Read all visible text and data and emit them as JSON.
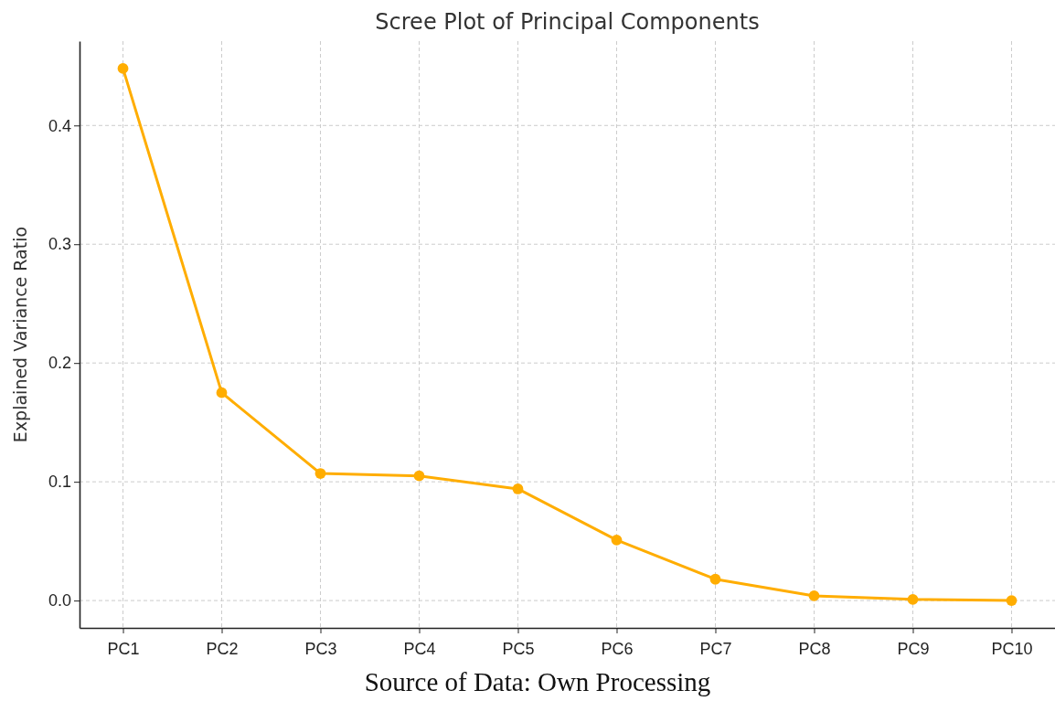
{
  "chart_data": {
    "type": "line",
    "title": "Scree Plot of Principal Components",
    "ylabel": "Explained Variance Ratio",
    "categories": [
      "PC1",
      "PC2",
      "PC3",
      "PC4",
      "PC5",
      "PC6",
      "PC7",
      "PC8",
      "PC9",
      "PC10"
    ],
    "series": [
      {
        "color": "#ffad00",
        "values": [
          0.448,
          0.175,
          0.107,
          0.105,
          0.094,
          0.051,
          0.018,
          0.004,
          0.001,
          0.0
        ]
      }
    ],
    "ylim": [
      -0.023,
      0.471
    ],
    "yticks": [
      {
        "value": 0,
        "label": "0.0"
      },
      0.1,
      0.2,
      0.3,
      0.4
    ],
    "grid": true,
    "marker": "circle",
    "line_style": "solid",
    "annotations": [
      "Source of Data: Own Processing"
    ]
  }
}
